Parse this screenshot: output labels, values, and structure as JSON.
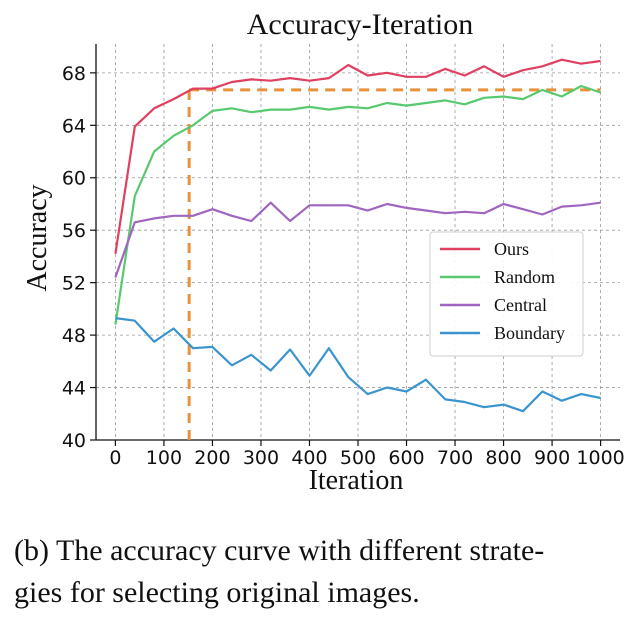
{
  "chart_data": {
    "type": "line",
    "title": "Accuracy-Iteration",
    "xlabel": "Iteration",
    "ylabel": "Accuracy",
    "xlim": [
      -40,
      1040
    ],
    "ylim": [
      40,
      70.2
    ],
    "x_ticks": [
      0,
      100,
      200,
      300,
      400,
      500,
      600,
      700,
      800,
      900,
      1000
    ],
    "x_tick_labels": [
      "0",
      "100",
      "200",
      "300",
      "400",
      "500",
      "600",
      "700",
      "800",
      "900",
      "1000"
    ],
    "y_ticks": [
      40,
      44,
      48,
      52,
      56,
      60,
      64,
      68
    ],
    "y_tick_labels": [
      "40",
      "44",
      "48",
      "52",
      "56",
      "60",
      "64",
      "68"
    ],
    "grid": true,
    "legend_position": "center-right",
    "x": [
      0,
      40,
      80,
      120,
      160,
      200,
      240,
      280,
      320,
      360,
      400,
      440,
      480,
      520,
      560,
      600,
      640,
      680,
      720,
      760,
      800,
      840,
      880,
      920,
      960,
      1000
    ],
    "series": [
      {
        "name": "Ours",
        "color": "#e0405f",
        "values": [
          54.2,
          63.9,
          65.3,
          66.0,
          66.8,
          66.8,
          67.3,
          67.5,
          67.4,
          67.6,
          67.4,
          67.6,
          68.6,
          67.8,
          68.0,
          67.7,
          67.7,
          68.3,
          67.8,
          68.5,
          67.7,
          68.2,
          68.5,
          69.0,
          68.7,
          68.9
        ]
      },
      {
        "name": "Random",
        "color": "#58c96e",
        "values": [
          48.8,
          58.6,
          62.0,
          63.2,
          64.0,
          65.1,
          65.3,
          65.0,
          65.2,
          65.2,
          65.4,
          65.2,
          65.4,
          65.3,
          65.7,
          65.5,
          65.7,
          65.9,
          65.6,
          66.1,
          66.2,
          66.0,
          66.7,
          66.2,
          67.0,
          66.5
        ]
      },
      {
        "name": "Central",
        "color": "#a065c0",
        "values": [
          52.4,
          56.6,
          56.9,
          57.1,
          57.1,
          57.6,
          57.1,
          56.7,
          58.1,
          56.7,
          57.9,
          57.9,
          57.9,
          57.5,
          58.0,
          57.7,
          57.5,
          57.3,
          57.4,
          57.3,
          58.0,
          57.6,
          57.2,
          57.8,
          57.9,
          58.1
        ]
      },
      {
        "name": "Boundary",
        "color": "#3a95cf",
        "values": [
          49.3,
          49.1,
          47.5,
          48.5,
          47.0,
          47.1,
          45.7,
          46.5,
          45.3,
          46.9,
          44.9,
          47.0,
          44.8,
          43.5,
          44.0,
          43.7,
          44.6,
          43.1,
          42.9,
          42.5,
          42.7,
          42.2,
          43.7,
          43.0,
          43.5,
          43.2
        ]
      }
    ],
    "annotation": {
      "type": "dashed-reference",
      "color": "#e8913a",
      "x": 152,
      "y": 66.7,
      "x_end": 1000
    }
  },
  "caption": "(b) The accuracy curve with different strate-\ngies for selecting original images."
}
